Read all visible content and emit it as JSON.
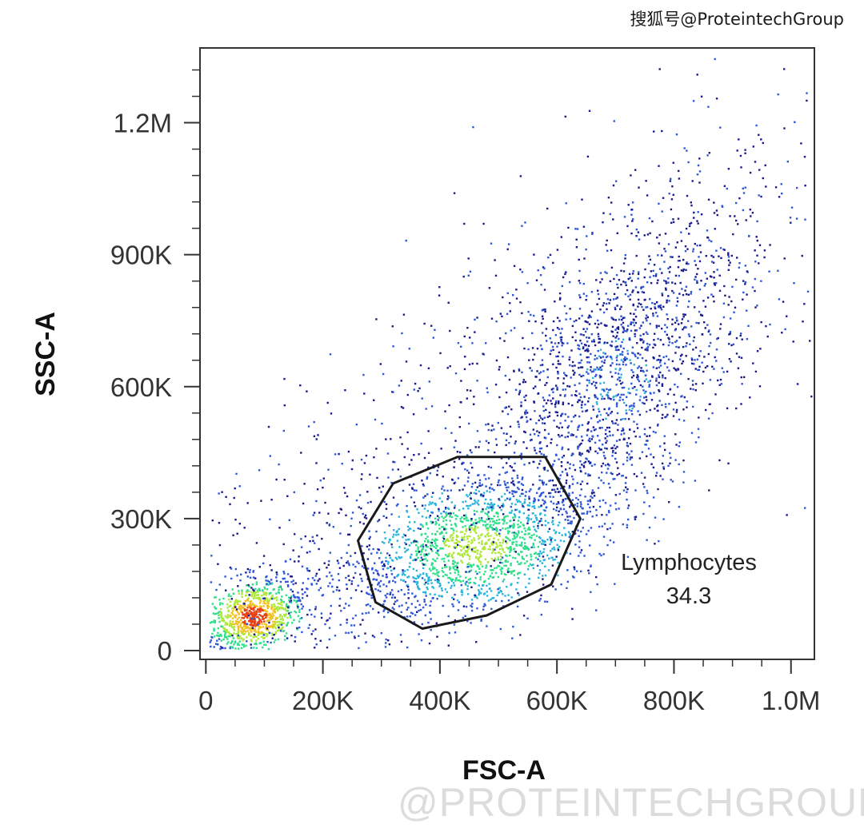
{
  "credit": "搜狐号@ProteintechGroup",
  "watermark": "@PROTEINTECHGROUP",
  "chart_data": {
    "type": "scatter",
    "subtype": "flow-cytometry density dot plot",
    "xlabel": "FSC-A",
    "ylabel": "SSC-A",
    "xlim": [
      -10000,
      1040000
    ],
    "ylim": [
      -20000,
      1370000
    ],
    "x_ticks": [
      {
        "value": 0,
        "label": "0"
      },
      {
        "value": 200000,
        "label": "200K"
      },
      {
        "value": 400000,
        "label": "400K"
      },
      {
        "value": 600000,
        "label": "600K"
      },
      {
        "value": 800000,
        "label": "800K"
      },
      {
        "value": 1000000,
        "label": "1.0M"
      }
    ],
    "y_ticks": [
      {
        "value": 0,
        "label": "0"
      },
      {
        "value": 300000,
        "label": "300K"
      },
      {
        "value": 600000,
        "label": "600K"
      },
      {
        "value": 900000,
        "label": "900K"
      },
      {
        "value": 1200000,
        "label": "1.2M"
      }
    ],
    "colormap": [
      "#1a1a8c",
      "#2e58d8",
      "#28b4dc",
      "#2fe08a",
      "#aee83a",
      "#f2c020",
      "#e84010"
    ],
    "populations": [
      {
        "center": [
          80000,
          80000
        ],
        "spread": [
          45000,
          45000
        ],
        "weight": 0.18,
        "density": "high"
      },
      {
        "center": [
          460000,
          240000
        ],
        "spread": [
          110000,
          85000
        ],
        "weight": 0.32,
        "density": "medium"
      },
      {
        "center": [
          700000,
          620000
        ],
        "spread": [
          95000,
          160000
        ],
        "weight": 0.22,
        "density": "low"
      },
      {
        "center": [
          420000,
          520000
        ],
        "spread": [
          260000,
          280000
        ],
        "weight": 0.28,
        "density": "sparse"
      }
    ],
    "gates": [
      {
        "name": "Lymphocytes",
        "percent": "34.3",
        "vertices": [
          [
            370000,
            50000
          ],
          [
            480000,
            80000
          ],
          [
            590000,
            150000
          ],
          [
            640000,
            300000
          ],
          [
            580000,
            440000
          ],
          [
            430000,
            440000
          ],
          [
            320000,
            380000
          ],
          [
            260000,
            250000
          ],
          [
            290000,
            110000
          ]
        ]
      }
    ]
  }
}
